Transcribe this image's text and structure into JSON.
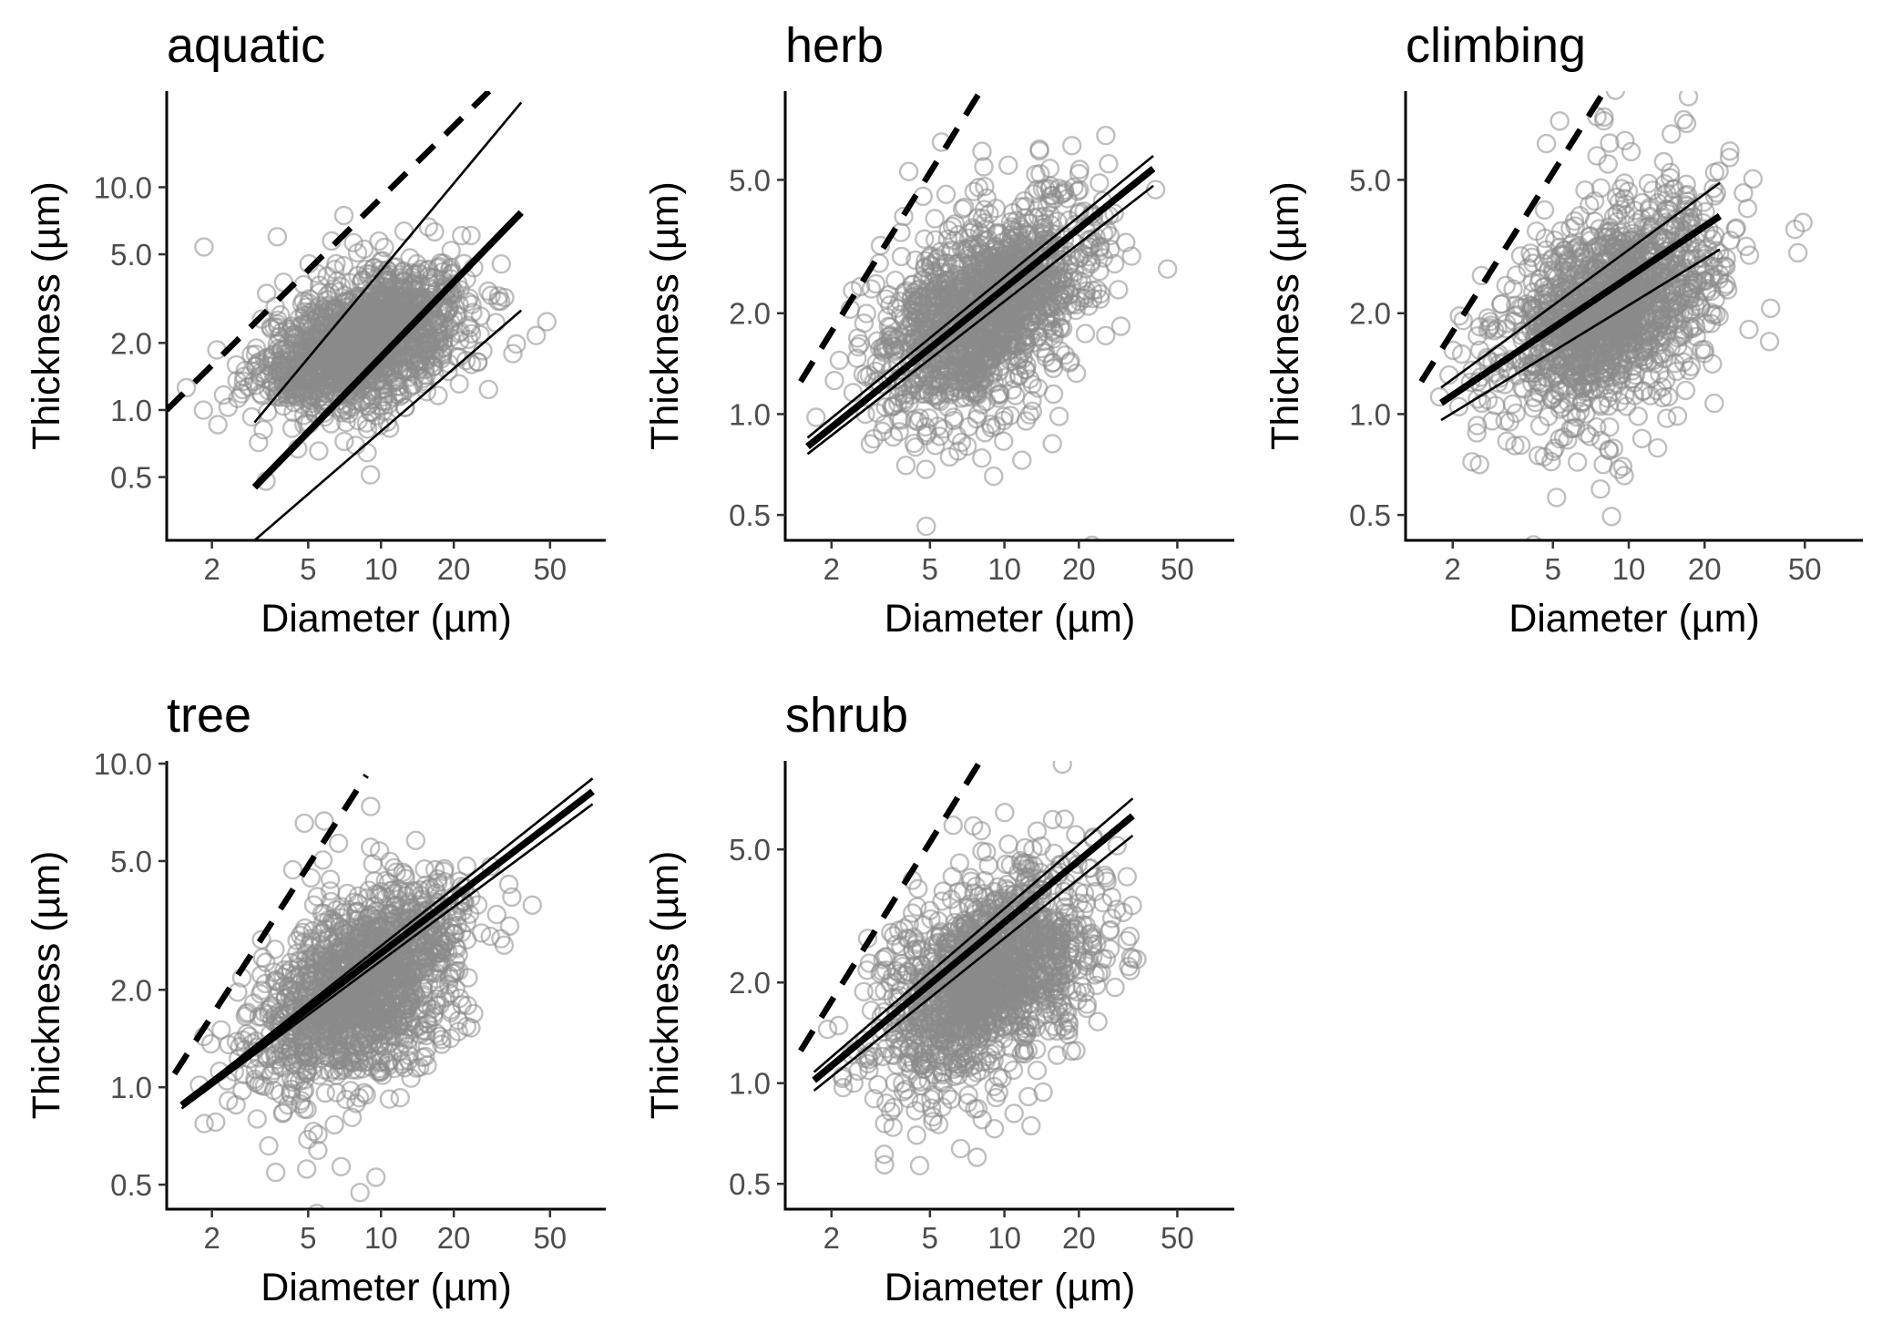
{
  "chart_data": [
    {
      "type": "scatter",
      "title": "aquatic",
      "xlabel": "Diameter (µm)",
      "ylabel": "Thickness (µm)",
      "x_scale": "log",
      "y_scale": "log",
      "xlim": [
        1.3,
        85
      ],
      "ylim": [
        0.26,
        27
      ],
      "xticks": [
        "2",
        "5",
        "10",
        "20",
        "50"
      ],
      "yticks": [
        "0.5",
        "1.0",
        "2.0",
        "5.0",
        "10.0"
      ],
      "grid": false,
      "series": [
        {
          "kind": "points",
          "cloud": {
            "log10_diameter_center": 0.93,
            "log10_diameter_sd": 0.21,
            "log10_thickness_center": 0.31,
            "log10_thickness_sd": 0.13,
            "slope": 0.35
          }
        },
        {
          "kind": "fit",
          "style": "thick",
          "line": [
            [
              3,
              0.45
            ],
            [
              38,
              7.7
            ]
          ]
        },
        {
          "kind": "ci",
          "style": "thin",
          "line": [
            [
              3,
              0.88
            ],
            [
              38,
              24
            ]
          ]
        },
        {
          "kind": "ci",
          "style": "thin",
          "line": [
            [
              3,
              0.26
            ],
            [
              38,
              2.8
            ]
          ]
        },
        {
          "kind": "reference",
          "style": "dashed",
          "line": [
            [
              1.3,
              1.0
            ],
            [
              28,
              27
            ]
          ]
        }
      ]
    },
    {
      "type": "scatter",
      "title": "herb",
      "xlabel": "Diameter (µm)",
      "ylabel": "Thickness (µm)",
      "x_scale": "log",
      "y_scale": "log",
      "xlim": [
        1.3,
        85
      ],
      "ylim": [
        0.42,
        9.2
      ],
      "xticks": [
        "2",
        "5",
        "10",
        "20",
        "50"
      ],
      "yticks": [
        "0.5",
        "1.0",
        "2.0",
        "5.0"
      ],
      "grid": false,
      "series": [
        {
          "kind": "points",
          "cloud": {
            "log10_diameter_center": 0.93,
            "log10_diameter_sd": 0.21,
            "log10_thickness_center": 0.31,
            "log10_thickness_sd": 0.13,
            "slope": 0.35
          }
        },
        {
          "kind": "fit",
          "style": "thick",
          "line": [
            [
              1.6,
              0.8
            ],
            [
              40,
              5.4
            ]
          ]
        },
        {
          "kind": "ci",
          "style": "thin",
          "line": [
            [
              1.6,
              0.85
            ],
            [
              40,
              5.9
            ]
          ]
        },
        {
          "kind": "ci",
          "style": "thin",
          "line": [
            [
              1.6,
              0.76
            ],
            [
              40,
              4.8
            ]
          ]
        },
        {
          "kind": "reference",
          "style": "dashed",
          "line": [
            [
              1.5,
              1.25
            ],
            [
              8,
              9.2
            ]
          ]
        }
      ]
    },
    {
      "type": "scatter",
      "title": "climbing",
      "xlabel": "Diameter (µm)",
      "ylabel": "Thickness (µm)",
      "x_scale": "log",
      "y_scale": "log",
      "xlim": [
        1.3,
        85
      ],
      "ylim": [
        0.42,
        9.2
      ],
      "xticks": [
        "2",
        "5",
        "10",
        "20",
        "50"
      ],
      "yticks": [
        "0.5",
        "1.0",
        "2.0",
        "5.0"
      ],
      "grid": false,
      "series": [
        {
          "kind": "points",
          "cloud": {
            "log10_diameter_center": 0.93,
            "log10_diameter_sd": 0.21,
            "log10_thickness_center": 0.31,
            "log10_thickness_sd": 0.13,
            "slope": 0.35
          }
        },
        {
          "kind": "fit",
          "style": "thick",
          "line": [
            [
              1.8,
              1.08
            ],
            [
              23,
              3.9
            ]
          ]
        },
        {
          "kind": "ci",
          "style": "thin",
          "line": [
            [
              1.8,
              1.2
            ],
            [
              23,
              4.9
            ]
          ]
        },
        {
          "kind": "ci",
          "style": "thin",
          "line": [
            [
              1.8,
              0.96
            ],
            [
              23,
              3.1
            ]
          ]
        },
        {
          "kind": "reference",
          "style": "dashed",
          "line": [
            [
              1.5,
              1.25
            ],
            [
              8,
              9.2
            ]
          ]
        }
      ]
    },
    {
      "type": "scatter",
      "title": "tree",
      "xlabel": "Diameter (µm)",
      "ylabel": "Thickness (µm)",
      "x_scale": "log",
      "y_scale": "log",
      "xlim": [
        1.3,
        85
      ],
      "ylim": [
        0.42,
        10.2
      ],
      "xticks": [
        "2",
        "5",
        "10",
        "20",
        "50"
      ],
      "yticks": [
        "0.5",
        "1.0",
        "2.0",
        "5.0",
        "10.0"
      ],
      "grid": false,
      "series": [
        {
          "kind": "points",
          "cloud": {
            "log10_diameter_center": 0.93,
            "log10_diameter_sd": 0.21,
            "log10_thickness_center": 0.31,
            "log10_thickness_sd": 0.13,
            "slope": 0.35
          }
        },
        {
          "kind": "fit",
          "style": "thick",
          "line": [
            [
              1.5,
              0.88
            ],
            [
              75,
              8.2
            ]
          ]
        },
        {
          "kind": "ci",
          "style": "thin",
          "line": [
            [
              1.5,
              0.89
            ],
            [
              75,
              9.0
            ]
          ]
        },
        {
          "kind": "ci",
          "style": "thin",
          "line": [
            [
              1.5,
              0.86
            ],
            [
              75,
              7.5
            ]
          ]
        },
        {
          "kind": "reference",
          "style": "dashed",
          "line": [
            [
              1.4,
              1.1
            ],
            [
              8.7,
              9.2
            ]
          ]
        }
      ]
    },
    {
      "type": "scatter",
      "title": "shrub",
      "xlabel": "Diameter (µm)",
      "ylabel": "Thickness (µm)",
      "x_scale": "log",
      "y_scale": "log",
      "xlim": [
        1.3,
        85
      ],
      "ylim": [
        0.42,
        9.2
      ],
      "xticks": [
        "2",
        "5",
        "10",
        "20",
        "50"
      ],
      "yticks": [
        "0.5",
        "1.0",
        "2.0",
        "5.0"
      ],
      "grid": false,
      "series": [
        {
          "kind": "points",
          "cloud": {
            "log10_diameter_center": 0.93,
            "log10_diameter_sd": 0.21,
            "log10_thickness_center": 0.31,
            "log10_thickness_sd": 0.13,
            "slope": 0.35
          }
        },
        {
          "kind": "fit",
          "style": "thick",
          "line": [
            [
              1.7,
              1.02
            ],
            [
              33,
              6.3
            ]
          ]
        },
        {
          "kind": "ci",
          "style": "thin",
          "line": [
            [
              1.7,
              1.08
            ],
            [
              33,
              7.1
            ]
          ]
        },
        {
          "kind": "ci",
          "style": "thin",
          "line": [
            [
              1.7,
              0.95
            ],
            [
              33,
              5.5
            ]
          ]
        },
        {
          "kind": "reference",
          "style": "dashed",
          "line": [
            [
              1.5,
              1.25
            ],
            [
              8,
              9.2
            ]
          ]
        }
      ]
    }
  ]
}
